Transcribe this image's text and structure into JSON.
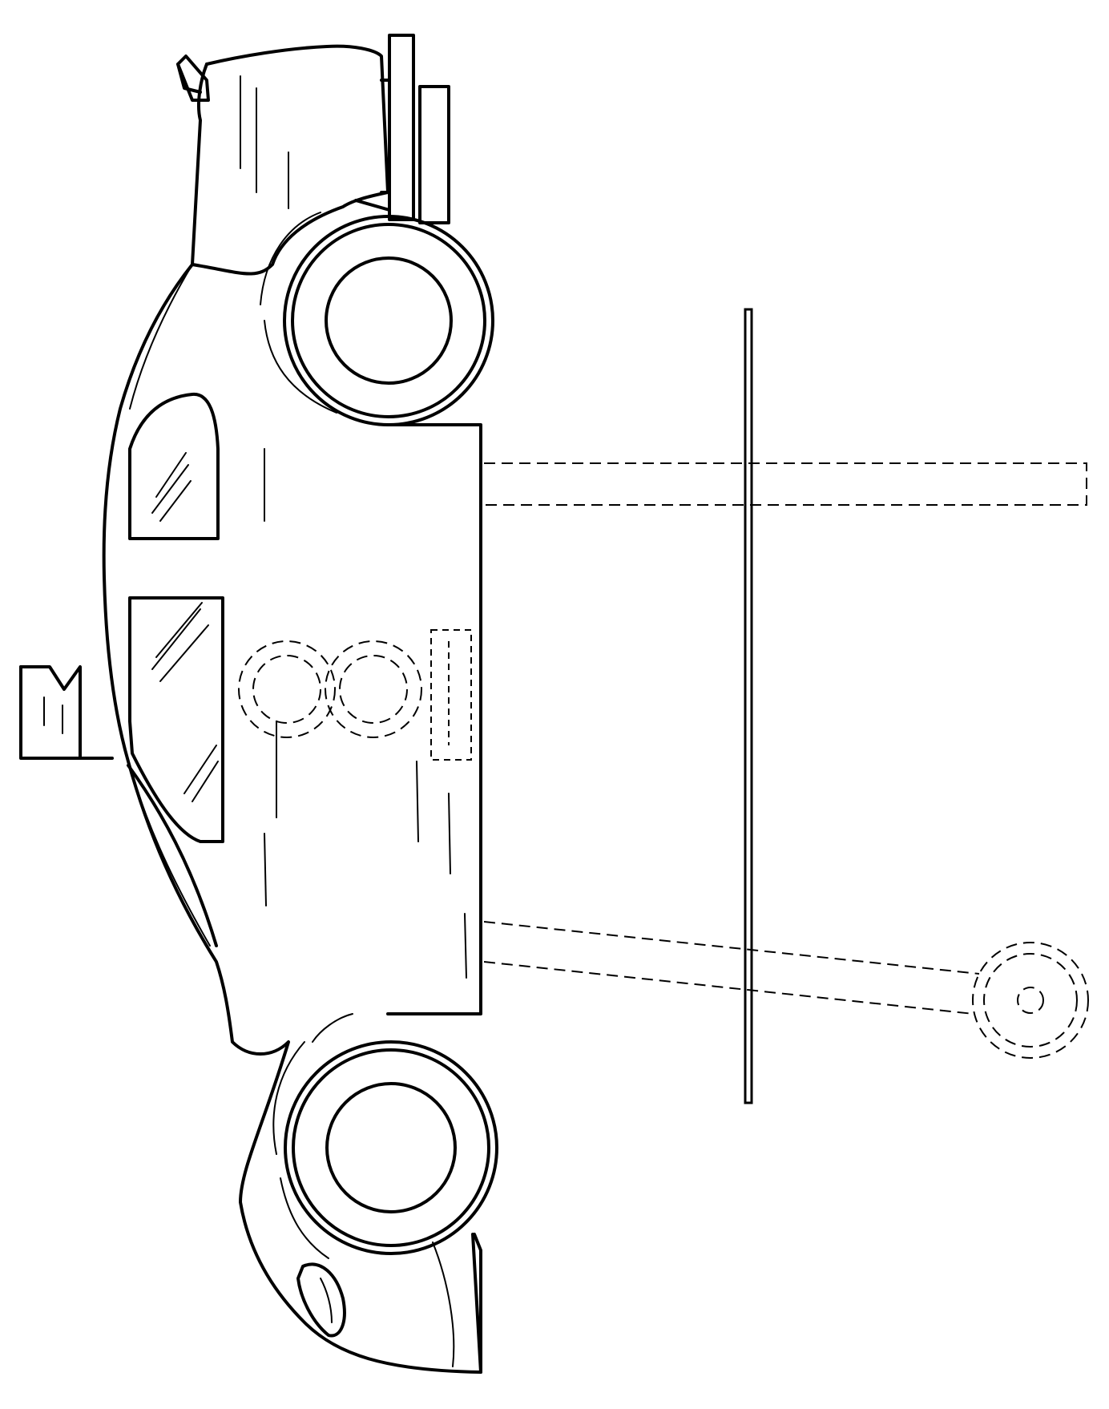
{
  "figure": {
    "kind": "line-drawing",
    "subject": "race-car-toy-side-view",
    "stroke_color": "#000000",
    "background_color": "#ffffff"
  }
}
